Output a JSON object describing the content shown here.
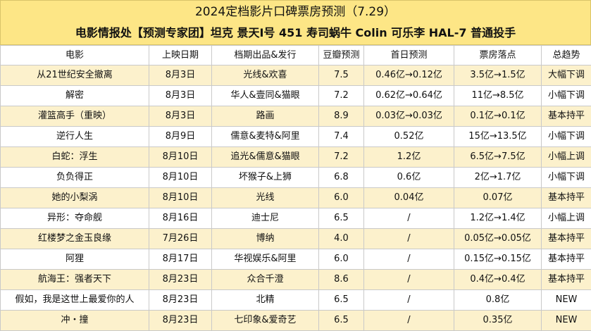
{
  "title_line1": "2024定档影片口碑票房预测（7.29）",
  "title_line2": "电影情报处【预测专家团】坦克 景天I号 451 寿司蜗牛 Colin 可乐李 HAL-7 普通投手",
  "columns": [
    "电影",
    "上映日期",
    "档期出品&发行",
    "豆瓣预测",
    "首日预测",
    "票房落点",
    "总趋势"
  ],
  "rows": [
    [
      "从21世纪安全撤离",
      "8月3日",
      "光线&欢喜",
      "7.5",
      "0.46亿→0.12亿",
      "3.5亿→1.5亿",
      "大幅下调"
    ],
    [
      "解密",
      "8月3日",
      "华人&壹同&猫眼",
      "7.2",
      "0.62亿→0.64亿",
      "11亿→8.5亿",
      "小幅下调"
    ],
    [
      "灌篮高手（重映）",
      "8月3日",
      "路画",
      "8.9",
      "0.03亿→0.03亿",
      "0.1亿→0.1亿",
      "基本持平"
    ],
    [
      "逆行人生",
      "8月9日",
      "儒意&麦特&阿里",
      "7.4",
      "0.52亿",
      "15亿→13.5亿",
      "小幅下调"
    ],
    [
      "白蛇：浮生",
      "8月10日",
      "追光&儒意&猫眼",
      "7.2",
      "1.2亿",
      "6.5亿→7.5亿",
      "小幅上调"
    ],
    [
      "负负得正",
      "8月10日",
      "坏猴子&上狮",
      "6.8",
      "0.6亿",
      "2亿→1.7亿",
      "小幅下调"
    ],
    [
      "她的小梨涡",
      "8月10日",
      "光线",
      "6.0",
      "0.04亿",
      "0.07亿",
      "基本持平"
    ],
    [
      "异形：夺命舰",
      "8月16日",
      "迪士尼",
      "6.5",
      "/",
      "1.2亿→1.4亿",
      "小幅上调"
    ],
    [
      "红楼梦之金玉良缘",
      "7月26日",
      "博纳",
      "4.0",
      "/",
      "0.05亿→0.05亿",
      "基本持平"
    ],
    [
      "阿狸",
      "8月17日",
      "华视娱乐&阿里",
      "6.0",
      "/",
      "0.15亿→0.15亿",
      "基本持平"
    ],
    [
      "航海王：强者天下",
      "8月23日",
      "众合千澄",
      "8.6",
      "/",
      "0.4亿→0.4亿",
      "基本持平"
    ],
    [
      "假如，我是这世上最爱你的人",
      "8月23日",
      "北精",
      "6.5",
      "/",
      "0.8亿",
      "NEW"
    ],
    [
      "冲・撞",
      "8月23日",
      "七印象&爱奇艺",
      "6.5",
      "/",
      "0.35亿",
      "NEW"
    ]
  ]
}
